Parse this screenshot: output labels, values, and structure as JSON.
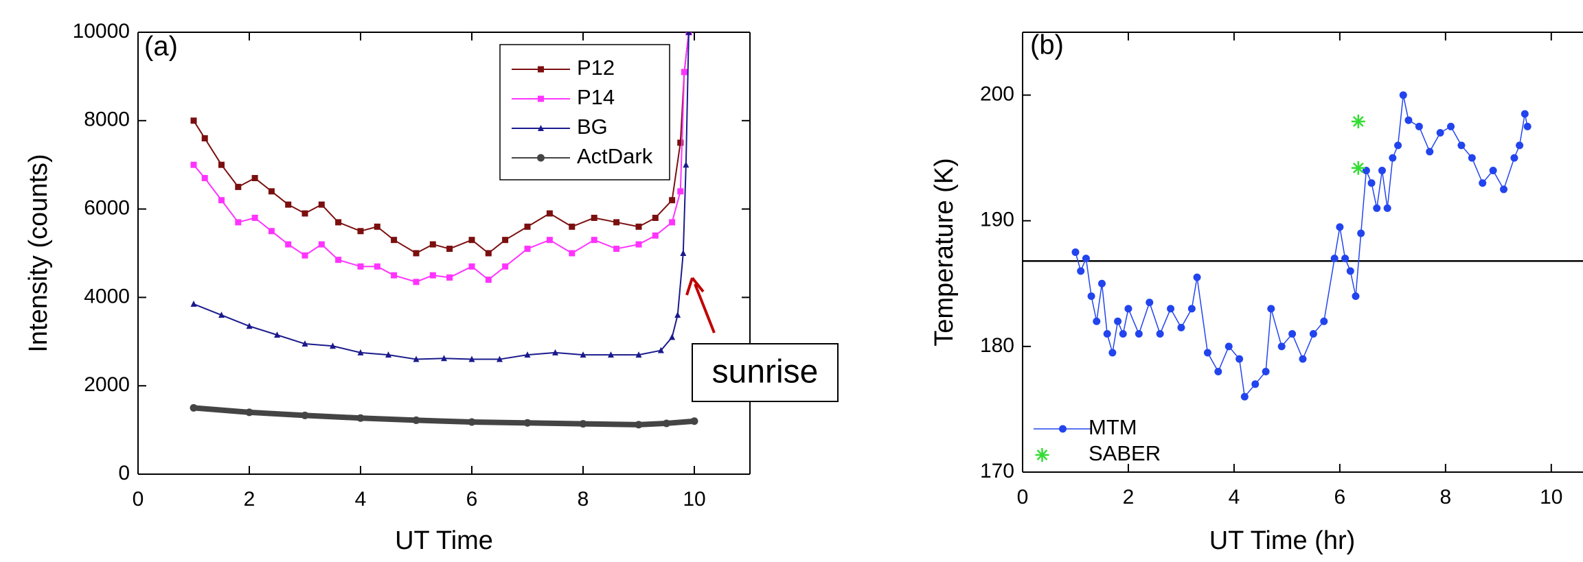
{
  "chart_data": [
    {
      "type": "line",
      "xlabel": "UT Time",
      "ylabel": "Intensity (counts)",
      "xlim": [
        0,
        11
      ],
      "xticks": [
        0,
        2,
        4,
        6,
        8,
        10
      ],
      "ylim": [
        0,
        10000
      ],
      "yticks": [
        0,
        2000,
        4000,
        6000,
        8000,
        10000
      ],
      "legend": "upper right",
      "annotations": [
        "(a)",
        "sunrise"
      ],
      "series": [
        {
          "name": "P12",
          "color": "#7b0f0f",
          "marker": "square",
          "linewidth": 2,
          "x": [
            1,
            1.2,
            1.5,
            1.8,
            2.1,
            2.4,
            2.7,
            3.0,
            3.3,
            3.6,
            4.0,
            4.3,
            4.6,
            5.0,
            5.3,
            5.6,
            6.0,
            6.3,
            6.6,
            7.0,
            7.4,
            7.8,
            8.2,
            8.6,
            9.0,
            9.3,
            9.6,
            9.75,
            9.82,
            9.9
          ],
          "values": [
            8000,
            7600,
            7000,
            6500,
            6700,
            6400,
            6100,
            5900,
            6100,
            5700,
            5500,
            5600,
            5300,
            5000,
            5200,
            5100,
            5300,
            5000,
            5300,
            5600,
            5900,
            5600,
            5800,
            5700,
            5600,
            5800,
            6200,
            7500,
            9100,
            10000
          ]
        },
        {
          "name": "P14",
          "color": "#ff33ff",
          "marker": "square",
          "linewidth": 2,
          "x": [
            1,
            1.2,
            1.5,
            1.8,
            2.1,
            2.4,
            2.7,
            3.0,
            3.3,
            3.6,
            4.0,
            4.3,
            4.6,
            5.0,
            5.3,
            5.6,
            6.0,
            6.3,
            6.6,
            7.0,
            7.4,
            7.8,
            8.2,
            8.6,
            9.0,
            9.3,
            9.6,
            9.75,
            9.82,
            9.9
          ],
          "values": [
            7000,
            6700,
            6200,
            5700,
            5800,
            5500,
            5200,
            4950,
            5200,
            4850,
            4700,
            4700,
            4500,
            4350,
            4500,
            4450,
            4700,
            4400,
            4700,
            5100,
            5300,
            5000,
            5300,
            5100,
            5200,
            5400,
            5700,
            6400,
            9100,
            10000
          ]
        },
        {
          "name": "BG",
          "color": "#1a1a8c",
          "marker": "triangle",
          "linewidth": 2,
          "x": [
            1,
            1.5,
            2,
            2.5,
            3,
            3.5,
            4,
            4.5,
            5,
            5.5,
            6,
            6.5,
            7,
            7.5,
            8,
            8.5,
            9,
            9.4,
            9.6,
            9.7,
            9.8,
            9.85,
            9.9
          ],
          "values": [
            3850,
            3600,
            3350,
            3150,
            2950,
            2900,
            2750,
            2700,
            2600,
            2620,
            2600,
            2600,
            2700,
            2750,
            2700,
            2700,
            2700,
            2800,
            3100,
            3600,
            5000,
            7000,
            10000
          ]
        },
        {
          "name": "ActDark",
          "color": "#444444",
          "marker": "circle",
          "linewidth": 8,
          "x": [
            1,
            2,
            3,
            4,
            5,
            6,
            7,
            8,
            9,
            9.5,
            10
          ],
          "values": [
            1500,
            1400,
            1330,
            1270,
            1220,
            1180,
            1160,
            1140,
            1120,
            1150,
            1200
          ]
        }
      ]
    },
    {
      "type": "line",
      "xlabel": "UT Time (hr)",
      "ylabel": "Temperature (K)",
      "xlim": [
        0,
        10.6
      ],
      "xticks": [
        0,
        2,
        4,
        6,
        8,
        10
      ],
      "ylim": [
        170,
        205
      ],
      "yticks": [
        170,
        180,
        190,
        200
      ],
      "legend": "lower left",
      "hline": 186.8,
      "annotations": [
        "(b)"
      ],
      "series": [
        {
          "name": "MTM",
          "color": "#2244ee",
          "marker": "circle",
          "linewidth": 1.5,
          "x": [
            1.0,
            1.1,
            1.2,
            1.3,
            1.4,
            1.5,
            1.6,
            1.7,
            1.8,
            1.9,
            2.0,
            2.2,
            2.4,
            2.6,
            2.8,
            3.0,
            3.2,
            3.3,
            3.5,
            3.7,
            3.9,
            4.1,
            4.2,
            4.4,
            4.6,
            4.7,
            4.9,
            5.1,
            5.3,
            5.5,
            5.7,
            5.9,
            6.0,
            6.1,
            6.2,
            6.3,
            6.4,
            6.5,
            6.6,
            6.7,
            6.8,
            6.9,
            7.0,
            7.1,
            7.2,
            7.3,
            7.5,
            7.7,
            7.9,
            8.1,
            8.3,
            8.5,
            8.7,
            8.9,
            9.1,
            9.3,
            9.4,
            9.5,
            9.55
          ],
          "values": [
            187.5,
            186,
            187,
            184,
            182,
            185,
            181,
            179.5,
            182,
            181,
            183,
            181,
            183.5,
            181,
            183,
            181.5,
            183,
            185.5,
            179.5,
            178,
            180,
            179,
            176,
            177,
            178,
            183,
            180,
            181,
            179,
            181,
            182,
            187,
            189.5,
            187,
            186,
            184,
            189,
            194,
            193,
            191,
            194,
            191,
            195,
            196,
            200,
            198,
            197.5,
            195.5,
            197,
            197.5,
            196,
            195,
            193,
            194,
            192.5,
            195,
            196,
            198.5,
            197.5
          ]
        },
        {
          "name": "SABER",
          "color": "#33dd33",
          "marker": "star",
          "linewidth": 0,
          "x": [
            6.35,
            6.35
          ],
          "values": [
            197.9,
            194.2
          ]
        }
      ]
    }
  ]
}
